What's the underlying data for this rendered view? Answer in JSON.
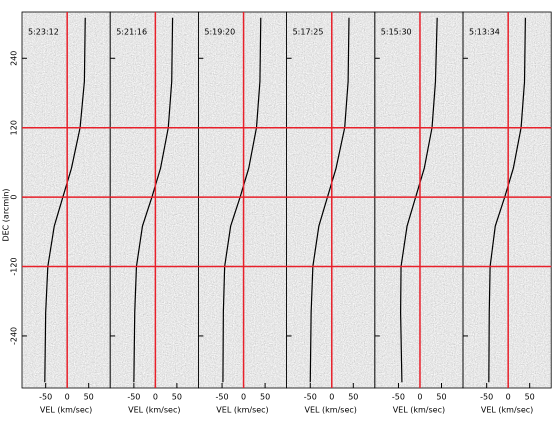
{
  "chart_data": [
    {
      "type": "pv",
      "title": "5:23:12",
      "xlabel": "VEL (km/sec)",
      "ylabel": "DEC (arcmin)",
      "xlim": [
        -105,
        100
      ],
      "xticks": [
        -50,
        0,
        50
      ],
      "ylim": [
        -330,
        320
      ],
      "yticks": [
        -240,
        -120,
        0,
        120,
        240
      ],
      "vlines": [
        0
      ],
      "hlines": [
        120,
        0,
        -120
      ],
      "ref_color": "#e8202a",
      "line_color": "#000000",
      "x": [
        -52,
        -50,
        -45,
        -30,
        -10,
        10,
        30,
        40,
        42
      ],
      "y": [
        -320,
        -200,
        -120,
        -50,
        0,
        50,
        120,
        200,
        310
      ]
    },
    {
      "type": "pv",
      "title": "5:21:16",
      "xlabel": "VEL (km/sec)",
      "xlim": [
        -105,
        100
      ],
      "xticks": [
        -50,
        0,
        50
      ],
      "vlines": [
        0
      ],
      "ref_color": "#e8202a",
      "line_color": "#000000",
      "x": [
        -50,
        -48,
        -44,
        -30,
        -8,
        12,
        30,
        38,
        40
      ],
      "y": [
        -320,
        -200,
        -120,
        -50,
        0,
        50,
        120,
        200,
        310
      ]
    },
    {
      "type": "pv",
      "title": "5:19:20",
      "xlabel": "VEL (km/sec)",
      "xlim": [
        -105,
        100
      ],
      "xticks": [
        -50,
        0,
        50
      ],
      "vlines": [
        0
      ],
      "ref_color": "#e8202a",
      "line_color": "#000000",
      "x": [
        -48,
        -47,
        -44,
        -30,
        -8,
        12,
        30,
        38,
        40
      ],
      "y": [
        -320,
        -200,
        -120,
        -50,
        0,
        50,
        120,
        200,
        310
      ]
    },
    {
      "type": "pv",
      "title": "5:17:25",
      "xlabel": "VEL (km/sec)",
      "xlim": [
        -105,
        100
      ],
      "xticks": [
        -50,
        0,
        50
      ],
      "vlines": [
        0
      ],
      "ref_color": "#e8202a",
      "line_color": "#000000",
      "x": [
        -50,
        -48,
        -44,
        -30,
        -10,
        10,
        30,
        38,
        40
      ],
      "y": [
        -320,
        -200,
        -120,
        -50,
        0,
        50,
        120,
        200,
        310
      ]
    },
    {
      "type": "pv",
      "title": "5:15:30",
      "xlabel": "VEL (km/sec)",
      "xlim": [
        -105,
        100
      ],
      "xticks": [
        -50,
        0,
        50
      ],
      "vlines": [
        0
      ],
      "ref_color": "#e8202a",
      "line_color": "#000000",
      "x": [
        -42,
        -45,
        -44,
        -30,
        -10,
        10,
        28,
        36,
        40
      ],
      "y": [
        -320,
        -200,
        -120,
        -50,
        0,
        50,
        120,
        200,
        310
      ]
    },
    {
      "type": "pv",
      "title": "5:13:34",
      "xlabel": "VEL (km/sec)",
      "xlim": [
        -105,
        100
      ],
      "xticks": [
        -50,
        0,
        50
      ],
      "vlines": [
        0
      ],
      "ref_color": "#e8202a",
      "line_color": "#000000",
      "x": [
        -45,
        -44,
        -42,
        -30,
        -8,
        12,
        30,
        38,
        40
      ],
      "y": [
        -320,
        -200,
        -120,
        -50,
        0,
        50,
        120,
        200,
        310
      ]
    }
  ]
}
